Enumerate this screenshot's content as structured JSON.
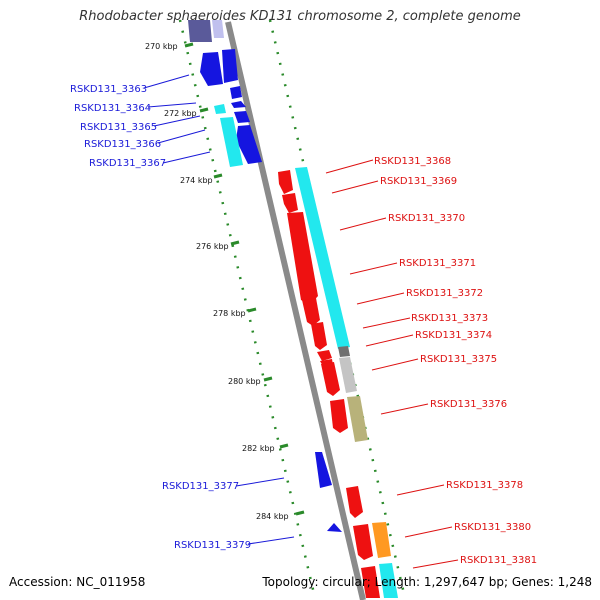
{
  "title": "Rhodobacter sphaeroides KD131 chromosome 2, complete genome",
  "footer": {
    "accession": "Accession: NC_011958",
    "summary": "Topology: circular; Length: 1,297,647 bp; Genes: 1,248"
  },
  "kbp_labels": [
    {
      "text": "270 kbp",
      "pos": 270
    },
    {
      "text": "272 kbp",
      "pos": 272
    },
    {
      "text": "274 kbp",
      "pos": 274
    },
    {
      "text": "276 kbp",
      "pos": 276
    },
    {
      "text": "278 kbp",
      "pos": 278
    },
    {
      "text": "280 kbp",
      "pos": 280
    },
    {
      "text": "282 kbp",
      "pos": 282
    },
    {
      "text": "284 kbp",
      "pos": 284
    }
  ],
  "genes": [
    {
      "name": "RSKD131_3363",
      "strand": "-"
    },
    {
      "name": "RSKD131_3364",
      "strand": "-"
    },
    {
      "name": "RSKD131_3365",
      "strand": "-"
    },
    {
      "name": "RSKD131_3366",
      "strand": "-"
    },
    {
      "name": "RSKD131_3367",
      "strand": "-"
    },
    {
      "name": "RSKD131_3368",
      "strand": "+"
    },
    {
      "name": "RSKD131_3369",
      "strand": "+"
    },
    {
      "name": "RSKD131_3370",
      "strand": "+"
    },
    {
      "name": "RSKD131_3371",
      "strand": "+"
    },
    {
      "name": "RSKD131_3372",
      "strand": "+"
    },
    {
      "name": "RSKD131_3373",
      "strand": "+"
    },
    {
      "name": "RSKD131_3374",
      "strand": "+"
    },
    {
      "name": "RSKD131_3375",
      "strand": "+"
    },
    {
      "name": "RSKD131_3376",
      "strand": "+"
    },
    {
      "name": "RSKD131_3377",
      "strand": "-"
    },
    {
      "name": "RSKD131_3378",
      "strand": "+"
    },
    {
      "name": "RSKD131_3379",
      "strand": "-"
    },
    {
      "name": "RSKD131_3380",
      "strand": "+"
    },
    {
      "name": "RSKD131_3381",
      "strand": "+"
    }
  ],
  "colors": {
    "backbone": "#8a8a8a",
    "reverse_cds": "#1515e0",
    "forward_cds": "#ee1111",
    "feature_cyan": "#22e8ee",
    "feature_gray": "#c4c4c4",
    "feature_olive": "#b8b27a",
    "feature_orange": "#ff9922",
    "reverse_label": "#1a1ad8",
    "forward_label": "#dd1111",
    "tick": "#2a8a2a"
  }
}
